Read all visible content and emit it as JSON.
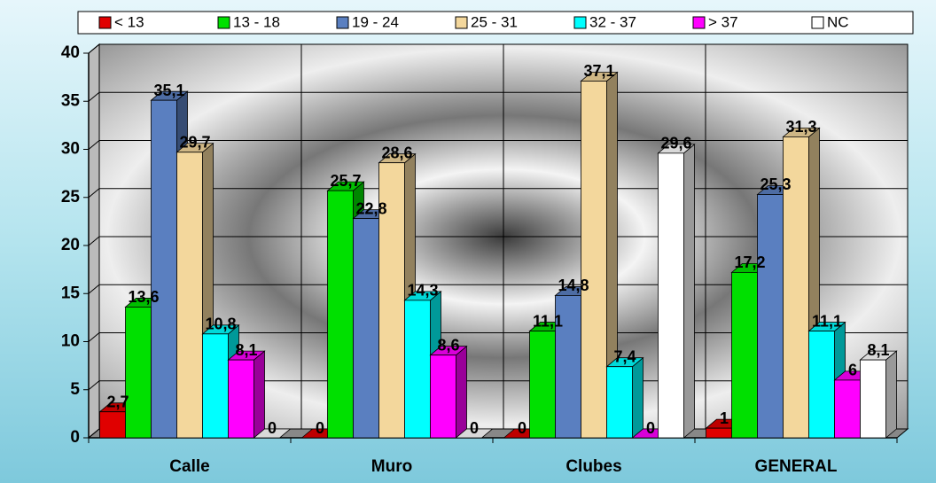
{
  "chart_data": {
    "type": "bar3d",
    "categories": [
      "Calle",
      "Muro",
      "Clubes",
      "GENERAL"
    ],
    "series": [
      {
        "name": "< 13",
        "color": "#e00000",
        "values": [
          2.7,
          0,
          0,
          1
        ],
        "value_labels": [
          "2,7",
          "0",
          "0",
          "1"
        ]
      },
      {
        "name": "13 - 18",
        "color": "#00e000",
        "values": [
          13.6,
          25.7,
          11.1,
          17.2
        ],
        "value_labels": [
          "13,6",
          "25,7",
          "11,1",
          "17,2"
        ]
      },
      {
        "name": "19 - 24",
        "color": "#5a7fc0",
        "values": [
          35.1,
          22.8,
          14.8,
          25.3
        ],
        "value_labels": [
          "35,1",
          "22,8",
          "14,8",
          "25,3"
        ]
      },
      {
        "name": "25 - 31",
        "color": "#f3d79c",
        "values": [
          29.7,
          28.6,
          37.1,
          31.3
        ],
        "value_labels": [
          "29,7",
          "28,6",
          "37,1",
          "31,3"
        ]
      },
      {
        "name": "32 - 37",
        "color": "#00ffff",
        "values": [
          10.8,
          14.3,
          7.4,
          11.1
        ],
        "value_labels": [
          "10,8",
          "14,3",
          "7,4",
          "11,1"
        ]
      },
      {
        "name": "> 37",
        "color": "#ff00ff",
        "values": [
          8.1,
          8.6,
          0,
          6
        ],
        "value_labels": [
          "8,1",
          "8,6",
          "0",
          "6"
        ]
      },
      {
        "name": "NC",
        "color": "#ffffff",
        "values": [
          0,
          0,
          29.6,
          8.1
        ],
        "value_labels": [
          "0",
          "0",
          "29,6",
          "8,1"
        ]
      }
    ],
    "ylim": [
      0,
      40
    ],
    "yticks": [
      0,
      5,
      10,
      15,
      20,
      25,
      30,
      35,
      40
    ],
    "grid": true,
    "legend": "top"
  }
}
